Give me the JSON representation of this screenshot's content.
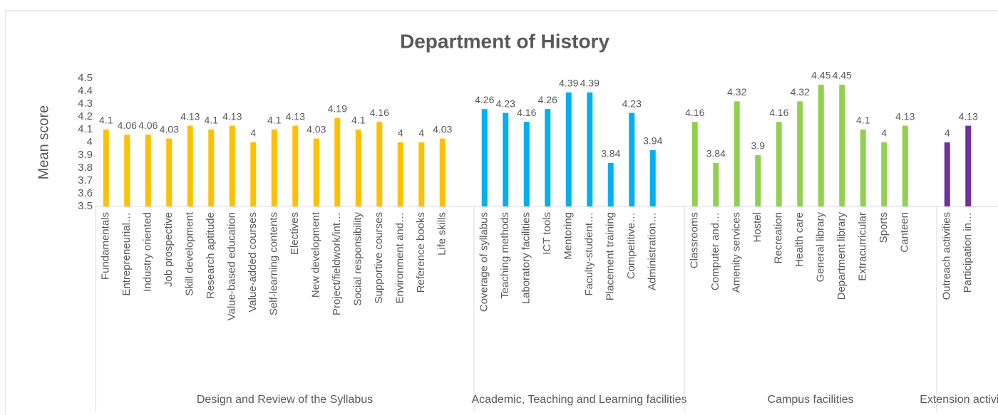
{
  "chart_data": {
    "type": "bar",
    "title": "Department of History",
    "y_label": "Mean score",
    "ylim": [
      3.5,
      4.5
    ],
    "yticks": [
      3.5,
      3.6,
      3.7,
      3.8,
      3.9,
      4,
      4.1,
      4.2,
      4.3,
      4.4,
      4.5
    ],
    "groups": [
      {
        "name": "Design and Review of the Syllabus",
        "color": "#ffc000",
        "categories": [
          "Fundamentals",
          "Entrepreneurial…",
          "Industry oriented",
          "Job prospective",
          "Skill development",
          "Research aptitude",
          "Value-based education",
          "Value-added courses",
          "Self-learning contents",
          "Electives",
          "New development",
          "Project/fieldwork/int…",
          "Social responsibility",
          "Supportive courses",
          "Environment and…",
          "Reference books",
          "Life skills"
        ],
        "values": [
          4.1,
          4.06,
          4.06,
          4.03,
          4.13,
          4.1,
          4.13,
          4,
          4.1,
          4.13,
          4.03,
          4.19,
          4.1,
          4.16,
          4,
          4,
          4.03
        ]
      },
      {
        "name": "Academic, Teaching and Learning facilities",
        "color": "#00b0f0",
        "categories": [
          "Coverage of syllabus",
          "Teaching methods",
          "Laboratory facilities",
          "ICT tools",
          "Mentoring",
          "Faculty-student…",
          "Placement training",
          "Competitive…",
          "Administration…"
        ],
        "values": [
          4.26,
          4.23,
          4.16,
          4.26,
          4.39,
          4.39,
          3.84,
          4.23,
          3.94
        ]
      },
      {
        "name": "Campus facilities",
        "color": "#92d050",
        "categories": [
          "Classrooms",
          "Computer and…",
          "Amenity services",
          "Hostel",
          "Recreation",
          "Health care",
          "General library",
          "Department library",
          "Extracurricular",
          "Sports",
          "Canteen"
        ],
        "values": [
          4.16,
          3.84,
          4.32,
          3.9,
          4.16,
          4.32,
          4.45,
          4.45,
          4.1,
          4,
          4.13
        ]
      },
      {
        "name": "Extension activities",
        "color": "#7030a0",
        "categories": [
          "Outreach activities",
          "Participation in…"
        ],
        "values": [
          4,
          4.13
        ]
      }
    ]
  }
}
